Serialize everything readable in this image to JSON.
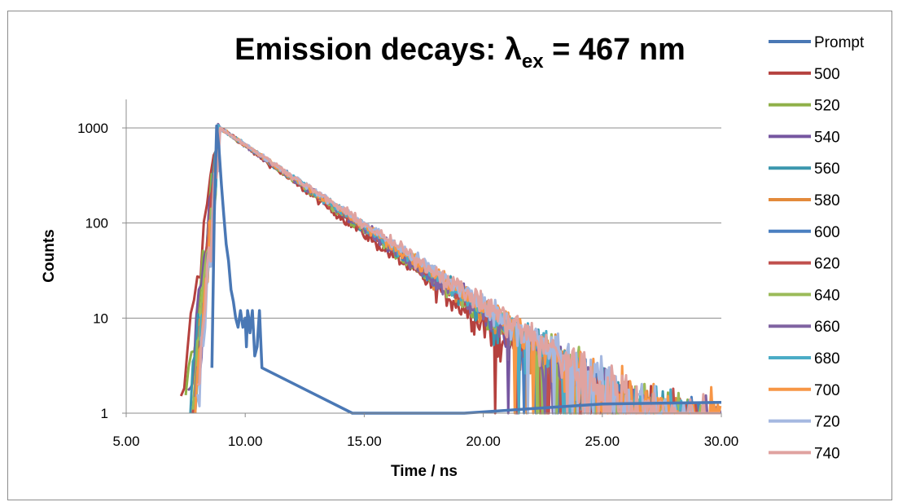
{
  "chart_data": {
    "type": "line",
    "title_main": "Emission decays: λ",
    "title_sub": "ex",
    "title_end": " = 467 nm",
    "xlabel": "Time / ns",
    "ylabel": "Counts",
    "xlim": [
      5,
      30
    ],
    "ylim": [
      1,
      2000
    ],
    "yscale": "log",
    "x_ticks": [
      "5.00",
      "10.00",
      "15.00",
      "20.00",
      "25.00",
      "30.00"
    ],
    "y_ticks": [
      "1",
      "10",
      "100",
      "1000"
    ],
    "grid": "horizontal",
    "legend_position": "right",
    "prompt": {
      "name": "Prompt",
      "color": "#4a78b5",
      "x": [
        8.6,
        8.7,
        8.8,
        8.9,
        9.0,
        9.1,
        9.2,
        9.3,
        9.4,
        9.5,
        9.6,
        9.7,
        9.8,
        9.9,
        10.0,
        10.05,
        10.1,
        10.15,
        10.2,
        10.3,
        10.4,
        10.5,
        10.6,
        10.7,
        14.5,
        19.2,
        25.0,
        30.0
      ],
      "y": [
        3,
        120,
        1050,
        600,
        250,
        120,
        60,
        40,
        20,
        15,
        10,
        8,
        12,
        8,
        10,
        5,
        12,
        10,
        7,
        12,
        4,
        5,
        12,
        3,
        1,
        1,
        1.25,
        1.3
      ]
    },
    "decay_series": [
      {
        "name": "500",
        "color": "#b5413e",
        "onset": 7.3,
        "tau": 2.35,
        "floor": 0.0
      },
      {
        "name": "520",
        "color": "#8fb048",
        "onset": 7.5,
        "tau": 2.45,
        "floor": 0.0
      },
      {
        "name": "540",
        "color": "#7656a0",
        "onset": 7.6,
        "tau": 2.5,
        "floor": 0.0
      },
      {
        "name": "560",
        "color": "#3b97ae",
        "onset": 7.7,
        "tau": 2.5,
        "floor": 0.0
      },
      {
        "name": "580",
        "color": "#e38a3b",
        "onset": 7.8,
        "tau": 2.5,
        "floor": 0.0
      },
      {
        "name": "600",
        "color": "#4a7fc1",
        "onset": 7.8,
        "tau": 2.5,
        "floor": 0.0
      },
      {
        "name": "620",
        "color": "#c0504d",
        "onset": 7.8,
        "tau": 2.5,
        "floor": 0.0
      },
      {
        "name": "640",
        "color": "#9bbb59",
        "onset": 7.8,
        "tau": 2.5,
        "floor": 0.0
      },
      {
        "name": "660",
        "color": "#8064a2",
        "onset": 7.9,
        "tau": 2.5,
        "floor": 0.0
      },
      {
        "name": "680",
        "color": "#4bacc6",
        "onset": 7.9,
        "tau": 2.55,
        "floor": 0.0
      },
      {
        "name": "700",
        "color": "#f79646",
        "onset": 7.9,
        "tau": 2.55,
        "floor": 0.0
      },
      {
        "name": "720",
        "color": "#a5b8e0",
        "onset": 8.0,
        "tau": 2.6,
        "floor": 0.0
      },
      {
        "name": "740",
        "color": "#e0a3a0",
        "onset": 8.0,
        "tau": 2.6,
        "floor": 0.0
      }
    ],
    "decay_peak": {
      "x": 8.95,
      "y": 1000
    },
    "legend_entries": [
      {
        "name": "Prompt",
        "color": "#4a78b5"
      },
      {
        "name": "500",
        "color": "#b5413e"
      },
      {
        "name": "520",
        "color": "#8fb048"
      },
      {
        "name": "540",
        "color": "#7656a0"
      },
      {
        "name": "560",
        "color": "#3b97ae"
      },
      {
        "name": "580",
        "color": "#e38a3b"
      },
      {
        "name": "600",
        "color": "#4a7fc1"
      },
      {
        "name": "620",
        "color": "#c0504d"
      },
      {
        "name": "640",
        "color": "#9bbb59"
      },
      {
        "name": "660",
        "color": "#8064a2"
      },
      {
        "name": "680",
        "color": "#4bacc6"
      },
      {
        "name": "700",
        "color": "#f79646"
      },
      {
        "name": "720",
        "color": "#a5b8e0"
      },
      {
        "name": "740",
        "color": "#e0a3a0"
      }
    ]
  }
}
